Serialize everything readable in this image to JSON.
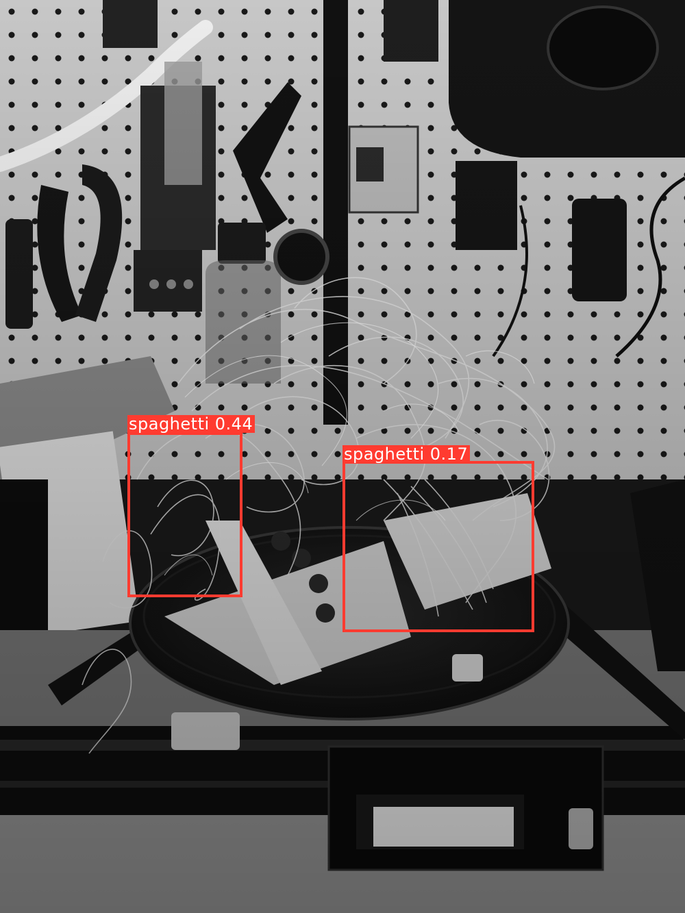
{
  "image": {
    "description_free": true
  },
  "detections": [
    {
      "label": "spaghetti",
      "score": "0.44",
      "caption": "spaghetti 0.44"
    },
    {
      "label": "spaghetti",
      "score": "0.17",
      "caption": "spaghetti 0.17"
    }
  ],
  "colors": {
    "box": "#ff3b30",
    "label_text": "#ffffff"
  }
}
